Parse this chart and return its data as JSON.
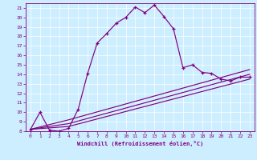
{
  "xlabel": "Windchill (Refroidissement éolien,°C)",
  "bg_color": "#cceeff",
  "line_color": "#800080",
  "xlim": [
    -0.5,
    23.5
  ],
  "ylim": [
    8,
    21.5
  ],
  "xticks": [
    0,
    1,
    2,
    3,
    4,
    5,
    6,
    7,
    8,
    9,
    10,
    11,
    12,
    13,
    14,
    15,
    16,
    17,
    18,
    19,
    20,
    21,
    22,
    23
  ],
  "yticks": [
    8,
    9,
    10,
    11,
    12,
    13,
    14,
    15,
    16,
    17,
    18,
    19,
    20,
    21
  ],
  "line1_x": [
    0,
    1,
    2,
    3,
    4,
    5,
    6,
    7,
    8,
    9,
    10,
    11,
    12,
    13,
    14,
    15,
    16,
    17,
    18,
    19,
    20,
    21,
    22,
    23
  ],
  "line1_y": [
    8.2,
    10.0,
    8.1,
    8.0,
    8.3,
    10.3,
    14.1,
    17.3,
    18.3,
    19.4,
    20.0,
    21.1,
    20.5,
    21.3,
    20.1,
    18.8,
    14.7,
    15.0,
    14.2,
    14.1,
    13.5,
    13.3,
    13.7,
    13.7
  ],
  "line2_x": [
    0,
    4,
    23
  ],
  "line2_y": [
    8.2,
    8.5,
    13.5
  ],
  "line3_x": [
    0,
    4,
    23
  ],
  "line3_y": [
    8.2,
    8.8,
    14.0
  ],
  "line4_x": [
    0,
    4,
    23
  ],
  "line4_y": [
    8.2,
    9.2,
    14.5
  ]
}
